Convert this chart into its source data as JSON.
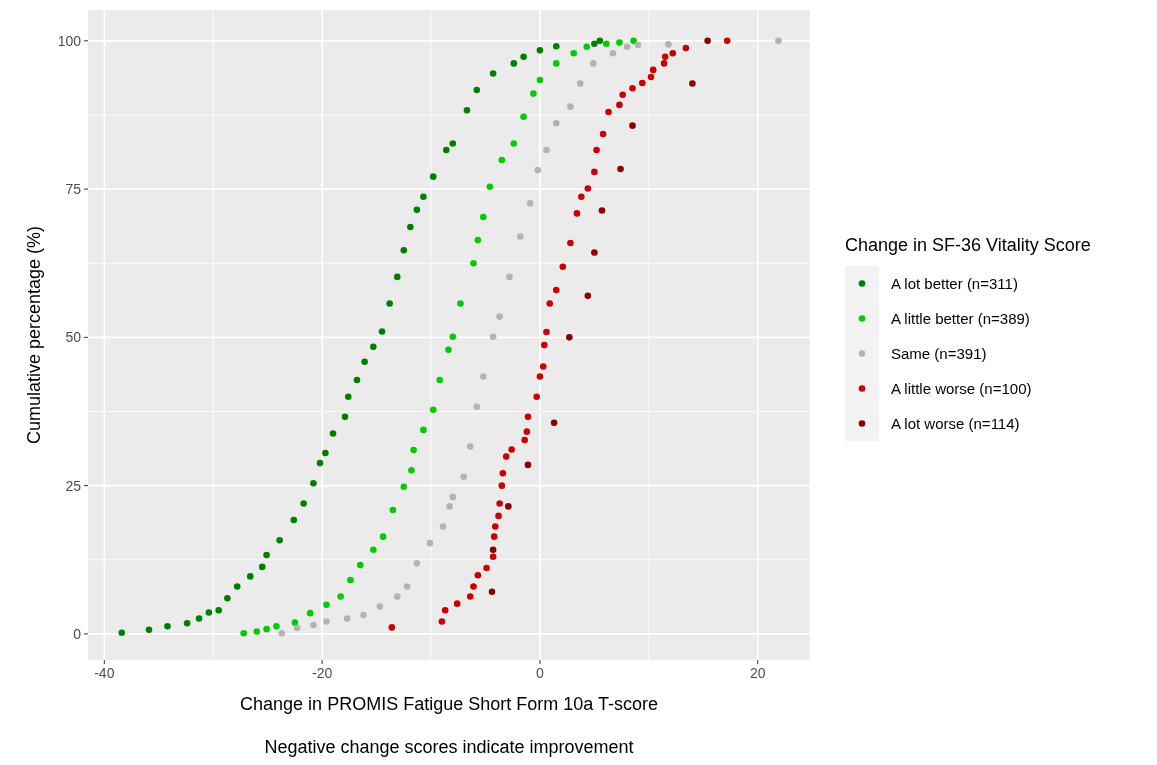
{
  "chart_data": {
    "type": "scatter",
    "xlabel": "Change in PROMIS Fatigue Short Form 10a T-score",
    "ylabel": "Cumulative percentage (%)",
    "legend_title": "Change in SF-36 Vitality Score",
    "annotations": [
      "Negative change scores indicate improvement"
    ],
    "xlim": [
      -41.5,
      24.8
    ],
    "ylim": [
      -4.4,
      105.2
    ],
    "xticks": [
      -40,
      -20,
      0,
      20
    ],
    "yticks": [
      0,
      25,
      50,
      75,
      100
    ],
    "grid": true,
    "legend": "right",
    "marker": "circle",
    "series": [
      {
        "name": "A lot better (n=311)",
        "color": "#008000",
        "x": [
          -38.4,
          -35.9,
          -34.2,
          -32.4,
          -31.3,
          -30.4,
          -29.5,
          -28.7,
          -27.8,
          -26.6,
          -25.5,
          -25.1,
          -23.9,
          -22.6,
          -21.7,
          -20.8,
          -20.2,
          -19.7,
          -19.0,
          -17.9,
          -17.6,
          -16.8,
          -16.1,
          -15.3,
          -14.5,
          -13.8,
          -13.1,
          -12.5,
          -11.9,
          -11.3,
          -10.7,
          -9.8,
          -8.6,
          -8.0,
          -6.7,
          -5.8,
          -4.3,
          -2.4,
          -1.5,
          0,
          1.5,
          5.0,
          5.5
        ],
        "values": [
          0.2,
          0.7,
          1.3,
          1.8,
          2.6,
          3.6,
          4.0,
          6.0,
          8.0,
          9.7,
          11.3,
          13.3,
          15.8,
          19.2,
          22.0,
          25.4,
          28.8,
          30.5,
          33.8,
          36.6,
          40.0,
          42.8,
          45.9,
          48.4,
          51.0,
          55.7,
          60.2,
          64.7,
          68.6,
          71.5,
          73.7,
          77.1,
          81.6,
          82.7,
          88.3,
          91.7,
          94.5,
          96.2,
          97.3,
          98.4,
          99.1,
          99.5,
          100
        ]
      },
      {
        "name": "A little better (n=389)",
        "color": "#00cc00",
        "x": [
          -27.2,
          -26.0,
          -25.1,
          -24.2,
          -22.5,
          -21.1,
          -19.6,
          -18.3,
          -17.4,
          -16.5,
          -15.3,
          -14.4,
          -13.5,
          -12.5,
          -11.8,
          -11.6,
          -10.7,
          -9.8,
          -9.2,
          -8.4,
          -8.0,
          -7.3,
          -6.1,
          -5.7,
          -5.2,
          -4.6,
          -3.5,
          -2.4,
          -1.5,
          -0.6,
          0,
          1.5,
          3.1,
          4.3,
          6.1,
          7.3,
          8.6
        ],
        "values": [
          0.1,
          0.4,
          0.8,
          1.3,
          1.9,
          3.5,
          4.9,
          6.3,
          9.1,
          11.6,
          14.2,
          16.4,
          20.9,
          24.8,
          27.6,
          31.0,
          34.4,
          37.8,
          42.8,
          47.9,
          50.1,
          55.7,
          62.5,
          66.4,
          70.3,
          75.4,
          79.9,
          82.7,
          87.2,
          91.1,
          93.4,
          96.2,
          97.9,
          99.0,
          99.5,
          99.7,
          100
        ]
      },
      {
        "name": "Same (n=391)",
        "color": "#b3b3b3",
        "x": [
          -23.7,
          -22.3,
          -20.8,
          -19.6,
          -17.7,
          -16.2,
          -14.7,
          -13.1,
          -12.2,
          -11.3,
          -10.1,
          -8.9,
          -8.3,
          -8.0,
          -7.0,
          -6.4,
          -5.8,
          -5.2,
          -4.3,
          -3.7,
          -2.8,
          -1.8,
          -0.9,
          -0.2,
          0.6,
          1.5,
          2.8,
          3.7,
          4.9,
          6.7,
          8.0,
          9.0,
          11.8,
          21.9
        ],
        "values": [
          0.1,
          1.0,
          1.5,
          2.1,
          2.6,
          3.2,
          4.6,
          6.3,
          8.0,
          11.9,
          15.3,
          18.1,
          21.5,
          23.1,
          26.5,
          31.6,
          38.3,
          43.4,
          50.1,
          53.5,
          60.2,
          67.0,
          72.6,
          78.2,
          81.6,
          86.1,
          88.9,
          92.8,
          96.2,
          97.9,
          99.0,
          99.3,
          99.4,
          100
        ]
      },
      {
        "name": "A little worse (n=100)",
        "color": "#cc0000",
        "x": [
          -13.6,
          -9.0,
          -8.7,
          -7.6,
          -6.4,
          -6.1,
          -5.7,
          -4.9,
          -4.3,
          -4.2,
          -4.1,
          -3.8,
          -3.7,
          -3.5,
          -3.4,
          -3.1,
          -2.6,
          -1.4,
          -1.2,
          -1.1,
          -0.3,
          0,
          0.3,
          0.4,
          0.6,
          0.9,
          1.5,
          2.1,
          2.8,
          3.4,
          3.8,
          4.4,
          5.0,
          5.2,
          5.8,
          6.3,
          7.3,
          7.6,
          8.5,
          9.4,
          10.2,
          10.4,
          11.4,
          11.5,
          12.2,
          13.4,
          17.2
        ],
        "values": [
          1.1,
          2.1,
          4.0,
          5.1,
          6.3,
          8.0,
          9.9,
          11.1,
          13.0,
          16.4,
          18.1,
          19.9,
          22.0,
          25.0,
          27.1,
          29.9,
          31.1,
          32.7,
          34.1,
          36.6,
          40.0,
          43.4,
          45.1,
          48.7,
          50.9,
          55.7,
          58.0,
          61.9,
          65.9,
          70.9,
          73.7,
          75.1,
          77.9,
          81.6,
          84.3,
          88.0,
          89.2,
          90.9,
          92.0,
          92.9,
          93.9,
          95.1,
          96.2,
          97.3,
          97.9,
          98.8,
          100
        ]
      },
      {
        "name": "A lot worse (n=114)",
        "color": "#8b0000",
        "x": [
          -4.4,
          -4.3,
          -2.9,
          -1.1,
          1.3,
          2.7,
          4.4,
          5.0,
          5.7,
          7.4,
          8.5,
          14.0,
          15.4
        ],
        "values": [
          7.1,
          14.2,
          21.5,
          28.5,
          35.6,
          50.0,
          57.0,
          64.3,
          71.4,
          78.4,
          85.7,
          92.8,
          100
        ]
      }
    ]
  }
}
